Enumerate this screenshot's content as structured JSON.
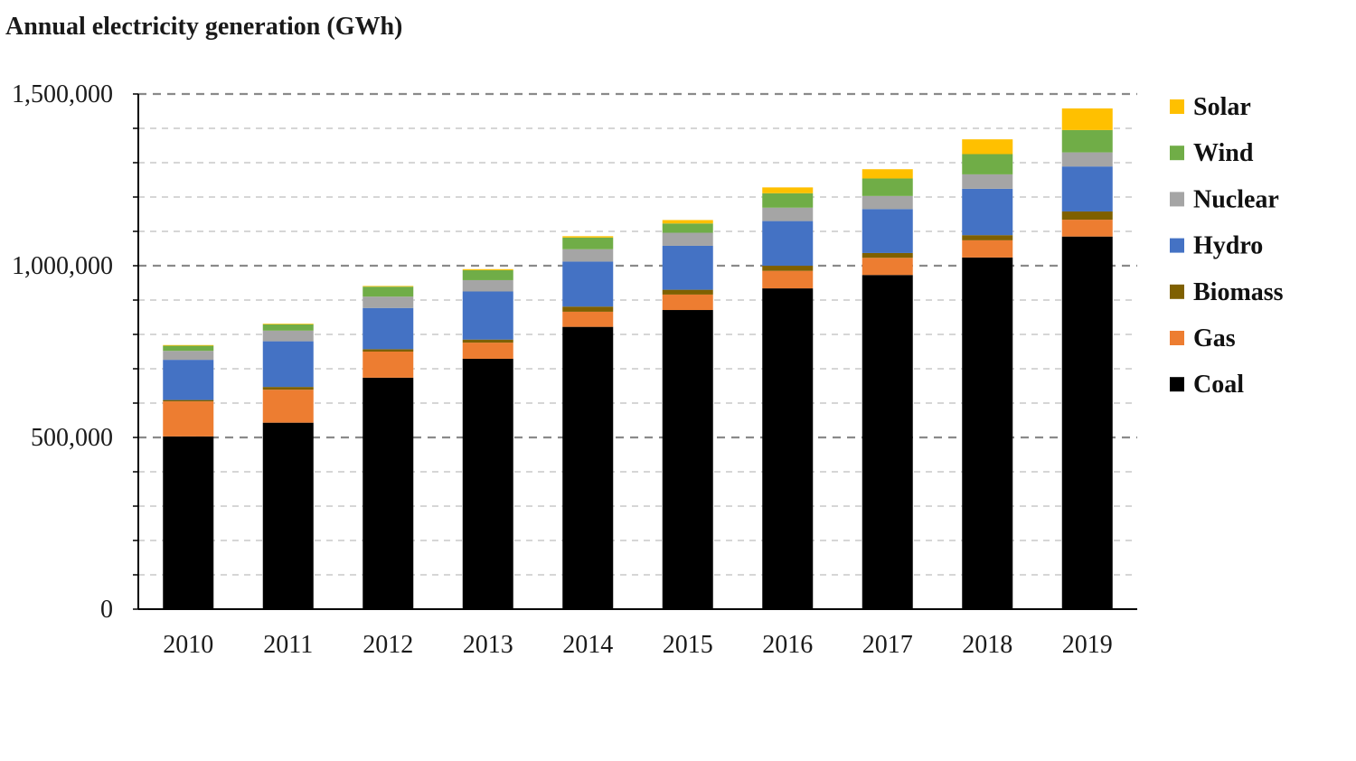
{
  "chart_data": {
    "type": "bar",
    "stacked": true,
    "title": "Annual electricity generation (GWh)",
    "xlabel": "",
    "ylabel": "",
    "ylim": [
      0,
      1500000
    ],
    "yticks": [
      0,
      500000,
      1000000,
      1500000
    ],
    "ytick_labels": [
      "0",
      "500,000",
      "1,000,000",
      "1,500,000"
    ],
    "minor_grid_step": 100000,
    "grid": true,
    "legend_position": "right",
    "categories": [
      "2010",
      "2011",
      "2012",
      "2013",
      "2014",
      "2015",
      "2016",
      "2017",
      "2018",
      "2019"
    ],
    "series": [
      {
        "name": "Coal",
        "color": "#000000",
        "values": [
          503000,
          543000,
          674000,
          729000,
          822000,
          871000,
          934000,
          973000,
          1024000,
          1085000
        ]
      },
      {
        "name": "Gas",
        "color": "#ED7D31",
        "values": [
          102000,
          96000,
          76000,
          47000,
          44000,
          45000,
          51000,
          50000,
          50000,
          49000
        ]
      },
      {
        "name": "Biomass",
        "color": "#7F6000",
        "values": [
          4000,
          8000,
          7000,
          9000,
          15000,
          14000,
          15000,
          14000,
          15000,
          24000
        ]
      },
      {
        "name": "Hydro",
        "color": "#4472C4",
        "values": [
          117000,
          133000,
          120000,
          140000,
          131000,
          128000,
          130000,
          128000,
          135000,
          131000
        ]
      },
      {
        "name": "Nuclear",
        "color": "#A5A5A5",
        "values": [
          26000,
          31000,
          33000,
          33000,
          36000,
          38000,
          39000,
          38000,
          42000,
          41000
        ]
      },
      {
        "name": "Wind",
        "color": "#70AD47",
        "values": [
          15000,
          18000,
          29000,
          29000,
          34000,
          27000,
          42000,
          51000,
          59000,
          65000
        ]
      },
      {
        "name": "Solar",
        "color": "#FFC000",
        "values": [
          2000,
          2000,
          2000,
          3000,
          4000,
          10000,
          17000,
          27000,
          43000,
          63000
        ]
      }
    ]
  }
}
